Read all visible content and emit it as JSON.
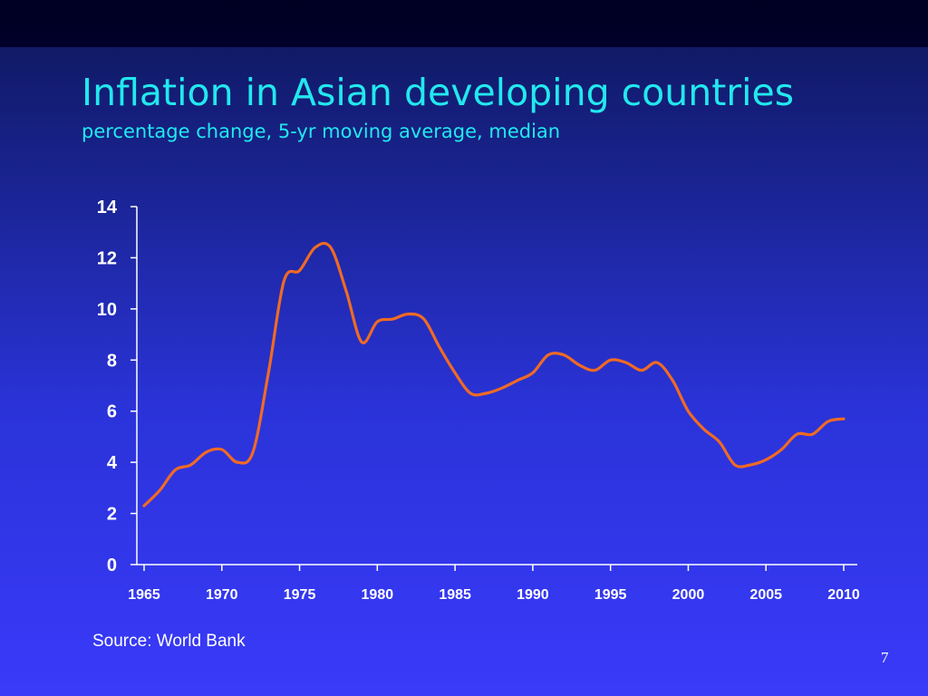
{
  "slide": {
    "title": "Inflation in Asian developing countries",
    "subtitle": "percentage change, 5-yr moving average, median",
    "source": "Source: World Bank",
    "page_number": "7"
  },
  "colors": {
    "title": "#22e8ee",
    "line": "#f06a24",
    "axis": "#ffffff"
  },
  "chart_data": {
    "type": "line",
    "title": "",
    "xlabel": "",
    "ylabel": "",
    "xlim": [
      1965,
      2010
    ],
    "ylim": [
      0,
      14
    ],
    "x_ticks": [
      "1965",
      "1970",
      "1975",
      "1980",
      "1985",
      "1990",
      "1995",
      "2000",
      "2005",
      "2010"
    ],
    "y_ticks": [
      "0",
      "2",
      "4",
      "6",
      "8",
      "10",
      "12",
      "14"
    ],
    "grid": false,
    "legend": "none",
    "series": [
      {
        "x": [
          1965,
          1966,
          1967,
          1968,
          1969,
          1970,
          1971,
          1972,
          1973,
          1974,
          1975,
          1976,
          1977,
          1978,
          1979,
          1980,
          1981,
          1982,
          1983,
          1984,
          1985,
          1986,
          1987,
          1988,
          1989,
          1990,
          1991,
          1992,
          1993,
          1994,
          1995,
          1996,
          1997,
          1998,
          1999,
          2000,
          2001,
          2002,
          2003,
          2004,
          2005,
          2006,
          2007,
          2008,
          2009,
          2010
        ],
        "y": [
          2.3,
          2.9,
          3.7,
          3.9,
          4.4,
          4.5,
          4.0,
          4.4,
          7.5,
          11.1,
          11.5,
          12.4,
          12.4,
          10.7,
          8.7,
          9.5,
          9.6,
          9.8,
          9.6,
          8.5,
          7.5,
          6.7,
          6.7,
          6.9,
          7.2,
          7.5,
          8.2,
          8.2,
          7.8,
          7.6,
          8.0,
          7.9,
          7.6,
          7.9,
          7.2,
          6.0,
          5.3,
          4.8,
          3.9,
          3.9,
          4.1,
          4.5,
          5.1,
          5.1,
          5.6,
          5.7
        ]
      }
    ]
  }
}
